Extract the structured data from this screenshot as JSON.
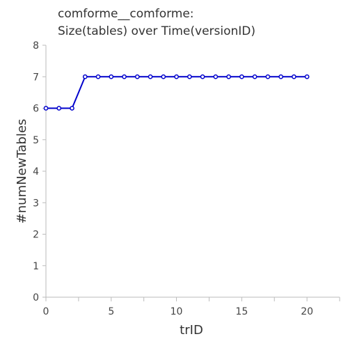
{
  "chart_data": {
    "type": "line",
    "title_lines": [
      "comforme__comforme:",
      "Size(tables) over Time(versionID)"
    ],
    "xlabel": "trID",
    "ylabel": "#numNewTables",
    "xlim": [
      0,
      22.5
    ],
    "ylim": [
      0,
      8
    ],
    "x_ticks": [
      0,
      5,
      10,
      15,
      20
    ],
    "y_ticks": [
      0,
      1,
      2,
      3,
      4,
      5,
      6,
      7,
      8
    ],
    "grid": false,
    "series": [
      {
        "color": "#0000cc",
        "x": [
          0,
          1,
          2,
          3,
          4,
          5,
          6,
          7,
          8,
          9,
          10,
          11,
          12,
          13,
          14,
          15,
          16,
          17,
          18,
          19,
          20
        ],
        "y": [
          6,
          6,
          6,
          7,
          7,
          7,
          7,
          7,
          7,
          7,
          7,
          7,
          7,
          7,
          7,
          7,
          7,
          7,
          7,
          7,
          7
        ]
      }
    ]
  }
}
